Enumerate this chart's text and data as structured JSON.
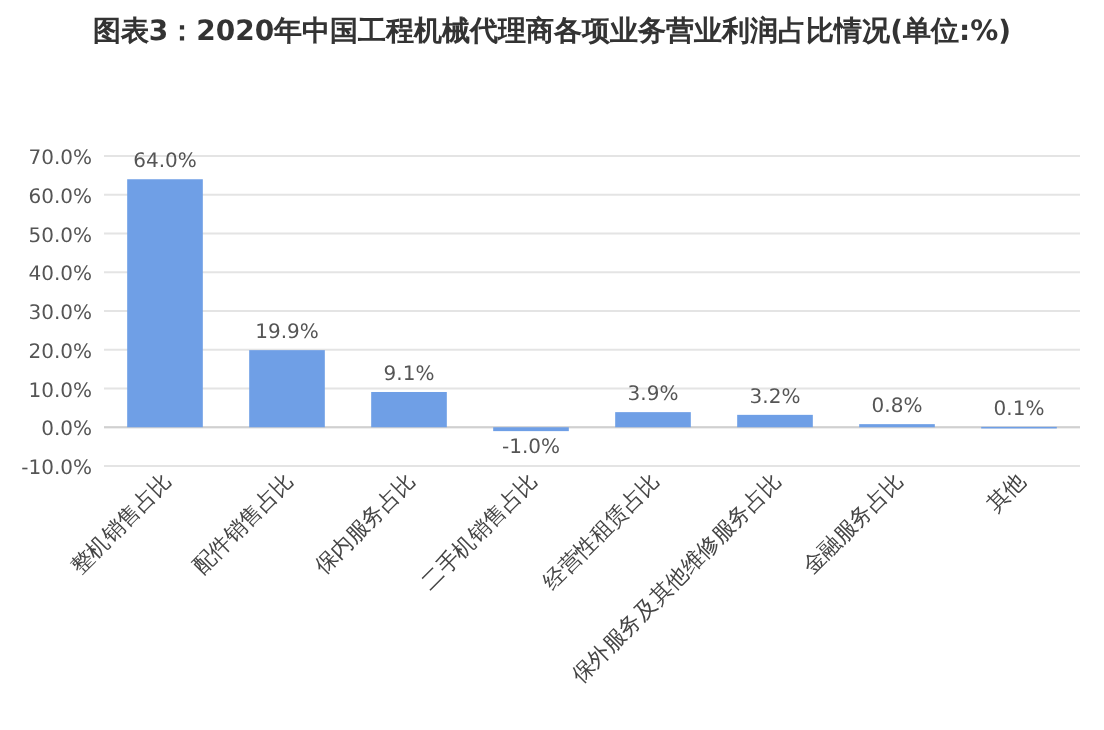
{
  "chart_data": {
    "type": "bar",
    "title": "图表3：2020年中国工程机械代理商各项业务营业利润占比情况(单位:%)",
    "categories": [
      "整机销售占比",
      "配件销售占比",
      "保内服务占比",
      "二手机销售占比",
      "经营性租赁占比",
      "保外服务及其他维修服务占比",
      "金融服务占比",
      "其他"
    ],
    "values": [
      64.0,
      19.9,
      9.1,
      -1.0,
      3.9,
      3.2,
      0.8,
      0.1
    ],
    "value_labels": [
      "64.0%",
      "19.9%",
      "9.1%",
      "-1.0%",
      "3.9%",
      "3.2%",
      "0.8%",
      "0.1%"
    ],
    "color": "#6f9fe6",
    "ylim": [
      -10,
      70
    ],
    "yticks": [
      {
        "value": -10,
        "label": "-10.0%"
      },
      {
        "value": 0,
        "label": "0.0%"
      },
      {
        "value": 10,
        "label": "10.0%"
      },
      {
        "value": 20,
        "label": "20.0%"
      },
      {
        "value": 30,
        "label": "30.0%"
      },
      {
        "value": 40,
        "label": "40.0%"
      },
      {
        "value": 50,
        "label": "50.0%"
      },
      {
        "value": 60,
        "label": "60.0%"
      },
      {
        "value": 70,
        "label": "70.0%"
      }
    ],
    "grid": "y"
  }
}
